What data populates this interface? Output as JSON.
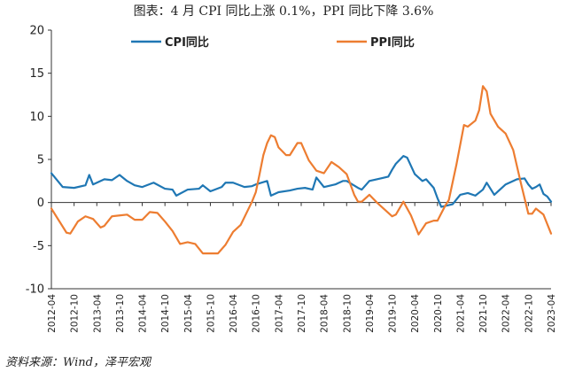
{
  "title": "图表：4 月 CPI 同比上涨 0.1%，PPI 同比下降 3.6%",
  "source": "资料来源：Wind，泽平宏观",
  "colors": {
    "cpi": "#1f77b4",
    "ppi": "#ed7d31",
    "axis": "#333333"
  },
  "chart_data": {
    "type": "line",
    "ylim": [
      -10,
      20
    ],
    "yticks": [
      -10,
      -5,
      0,
      5,
      10,
      15,
      20
    ],
    "grid": false,
    "legend": "top",
    "x_start": "2012-04",
    "x_end": "2023-04",
    "xtick_labels": [
      "2012-04",
      "2012-10",
      "2013-04",
      "2013-10",
      "2014-04",
      "2014-10",
      "2015-04",
      "2015-10",
      "2016-04",
      "2016-10",
      "2017-04",
      "2017-10",
      "2018-04",
      "2018-10",
      "2019-04",
      "2019-10",
      "2020-04",
      "2020-10",
      "2021-04",
      "2021-10",
      "2022-04",
      "2022-10",
      "2023-04"
    ],
    "series": [
      {
        "name": "CPI同比",
        "color": "#1f77b4",
        "points": [
          [
            "2012-04",
            3.4
          ],
          [
            "2012-07",
            1.8
          ],
          [
            "2012-10",
            1.7
          ],
          [
            "2013-01",
            2.0
          ],
          [
            "2013-02",
            3.2
          ],
          [
            "2013-03",
            2.1
          ],
          [
            "2013-06",
            2.7
          ],
          [
            "2013-08",
            2.6
          ],
          [
            "2013-10",
            3.2
          ],
          [
            "2013-12",
            2.5
          ],
          [
            "2014-02",
            2.0
          ],
          [
            "2014-04",
            1.8
          ],
          [
            "2014-07",
            2.3
          ],
          [
            "2014-10",
            1.6
          ],
          [
            "2014-12",
            1.5
          ],
          [
            "2015-01",
            0.8
          ],
          [
            "2015-04",
            1.5
          ],
          [
            "2015-07",
            1.6
          ],
          [
            "2015-08",
            2.0
          ],
          [
            "2015-10",
            1.3
          ],
          [
            "2016-01",
            1.8
          ],
          [
            "2016-02",
            2.3
          ],
          [
            "2016-04",
            2.3
          ],
          [
            "2016-07",
            1.8
          ],
          [
            "2016-09",
            1.9
          ],
          [
            "2016-10",
            2.1
          ],
          [
            "2017-01",
            2.5
          ],
          [
            "2017-02",
            0.8
          ],
          [
            "2017-04",
            1.2
          ],
          [
            "2017-07",
            1.4
          ],
          [
            "2017-09",
            1.6
          ],
          [
            "2017-11",
            1.7
          ],
          [
            "2018-01",
            1.5
          ],
          [
            "2018-02",
            2.9
          ],
          [
            "2018-04",
            1.8
          ],
          [
            "2018-07",
            2.1
          ],
          [
            "2018-09",
            2.5
          ],
          [
            "2018-10",
            2.5
          ],
          [
            "2019-01",
            1.7
          ],
          [
            "2019-02",
            1.5
          ],
          [
            "2019-04",
            2.5
          ],
          [
            "2019-07",
            2.8
          ],
          [
            "2019-09",
            3.0
          ],
          [
            "2019-10",
            3.8
          ],
          [
            "2019-11",
            4.5
          ],
          [
            "2020-01",
            5.4
          ],
          [
            "2020-02",
            5.2
          ],
          [
            "2020-04",
            3.3
          ],
          [
            "2020-06",
            2.5
          ],
          [
            "2020-07",
            2.7
          ],
          [
            "2020-09",
            1.7
          ],
          [
            "2020-10",
            0.5
          ],
          [
            "2020-11",
            -0.5
          ],
          [
            "2021-01",
            -0.3
          ],
          [
            "2021-02",
            -0.2
          ],
          [
            "2021-04",
            0.9
          ],
          [
            "2021-06",
            1.1
          ],
          [
            "2021-08",
            0.8
          ],
          [
            "2021-10",
            1.5
          ],
          [
            "2021-11",
            2.3
          ],
          [
            "2022-01",
            0.9
          ],
          [
            "2022-04",
            2.1
          ],
          [
            "2022-07",
            2.7
          ],
          [
            "2022-09",
            2.8
          ],
          [
            "2022-10",
            2.1
          ],
          [
            "2022-11",
            1.6
          ],
          [
            "2022-12",
            1.8
          ],
          [
            "2023-01",
            2.1
          ],
          [
            "2023-02",
            1.0
          ],
          [
            "2023-03",
            0.7
          ],
          [
            "2023-04",
            0.1
          ]
        ]
      },
      {
        "name": "PPI同比",
        "color": "#ed7d31",
        "points": [
          [
            "2012-04",
            -0.7
          ],
          [
            "2012-06",
            -2.1
          ],
          [
            "2012-08",
            -3.5
          ],
          [
            "2012-09",
            -3.6
          ],
          [
            "2012-11",
            -2.2
          ],
          [
            "2013-01",
            -1.6
          ],
          [
            "2013-03",
            -1.9
          ],
          [
            "2013-05",
            -2.9
          ],
          [
            "2013-06",
            -2.7
          ],
          [
            "2013-08",
            -1.6
          ],
          [
            "2013-10",
            -1.5
          ],
          [
            "2013-12",
            -1.4
          ],
          [
            "2014-02",
            -2.0
          ],
          [
            "2014-04",
            -2.0
          ],
          [
            "2014-06",
            -1.1
          ],
          [
            "2014-08",
            -1.2
          ],
          [
            "2014-10",
            -2.2
          ],
          [
            "2014-12",
            -3.3
          ],
          [
            "2015-02",
            -4.8
          ],
          [
            "2015-04",
            -4.6
          ],
          [
            "2015-06",
            -4.8
          ],
          [
            "2015-08",
            -5.9
          ],
          [
            "2015-10",
            -5.9
          ],
          [
            "2015-12",
            -5.9
          ],
          [
            "2016-02",
            -4.9
          ],
          [
            "2016-04",
            -3.4
          ],
          [
            "2016-06",
            -2.6
          ],
          [
            "2016-08",
            -0.8
          ],
          [
            "2016-09",
            0.1
          ],
          [
            "2016-10",
            1.2
          ],
          [
            "2016-11",
            3.3
          ],
          [
            "2016-12",
            5.5
          ],
          [
            "2017-01",
            6.9
          ],
          [
            "2017-02",
            7.8
          ],
          [
            "2017-03",
            7.6
          ],
          [
            "2017-04",
            6.4
          ],
          [
            "2017-06",
            5.5
          ],
          [
            "2017-07",
            5.5
          ],
          [
            "2017-09",
            6.9
          ],
          [
            "2017-10",
            6.9
          ],
          [
            "2017-12",
            4.9
          ],
          [
            "2018-02",
            3.7
          ],
          [
            "2018-04",
            3.4
          ],
          [
            "2018-06",
            4.7
          ],
          [
            "2018-08",
            4.1
          ],
          [
            "2018-10",
            3.3
          ],
          [
            "2018-12",
            0.9
          ],
          [
            "2019-01",
            0.1
          ],
          [
            "2019-02",
            0.1
          ],
          [
            "2019-04",
            0.9
          ],
          [
            "2019-06",
            0.0
          ],
          [
            "2019-08",
            -0.8
          ],
          [
            "2019-10",
            -1.6
          ],
          [
            "2019-11",
            -1.4
          ],
          [
            "2020-01",
            0.1
          ],
          [
            "2020-03",
            -1.5
          ],
          [
            "2020-05",
            -3.7
          ],
          [
            "2020-07",
            -2.4
          ],
          [
            "2020-09",
            -2.1
          ],
          [
            "2020-10",
            -2.1
          ],
          [
            "2020-12",
            -0.4
          ],
          [
            "2021-01",
            0.3
          ],
          [
            "2021-03",
            4.4
          ],
          [
            "2021-05",
            9.0
          ],
          [
            "2021-06",
            8.8
          ],
          [
            "2021-08",
            9.5
          ],
          [
            "2021-09",
            10.7
          ],
          [
            "2021-10",
            13.5
          ],
          [
            "2021-11",
            12.9
          ],
          [
            "2021-12",
            10.3
          ],
          [
            "2022-02",
            8.8
          ],
          [
            "2022-04",
            8.0
          ],
          [
            "2022-06",
            6.1
          ],
          [
            "2022-08",
            2.3
          ],
          [
            "2022-10",
            -1.3
          ],
          [
            "2022-11",
            -1.3
          ],
          [
            "2022-12",
            -0.7
          ],
          [
            "2023-02",
            -1.4
          ],
          [
            "2023-03",
            -2.5
          ],
          [
            "2023-04",
            -3.6
          ]
        ]
      }
    ]
  }
}
